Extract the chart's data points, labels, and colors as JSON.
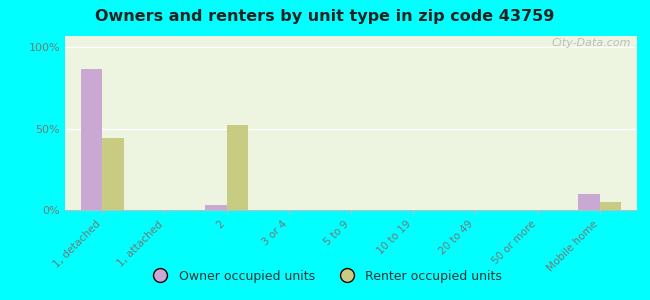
{
  "title": "Owners and renters by unit type in zip code 43759",
  "categories": [
    "1, detached",
    "1, attached",
    "2",
    "3 or 4",
    "5 to 9",
    "10 to 19",
    "20 to 49",
    "50 or more",
    "Mobile home"
  ],
  "owner_values": [
    87,
    0,
    3,
    0,
    0,
    0,
    0,
    0,
    10
  ],
  "renter_values": [
    44,
    0,
    52,
    0,
    0,
    0,
    0,
    0,
    5
  ],
  "owner_color": "#c9a8d4",
  "renter_color": "#c8cc82",
  "plot_bg": "#edf5e1",
  "bg_outer": "#00ffff",
  "ylabel_ticks": [
    0,
    50,
    100
  ],
  "ylabel_labels": [
    "0%",
    "50%",
    "100%"
  ],
  "watermark": "City-Data.com",
  "legend_owner": "Owner occupied units",
  "legend_renter": "Renter occupied units",
  "bar_width": 0.35,
  "ylim": [
    0,
    107
  ]
}
